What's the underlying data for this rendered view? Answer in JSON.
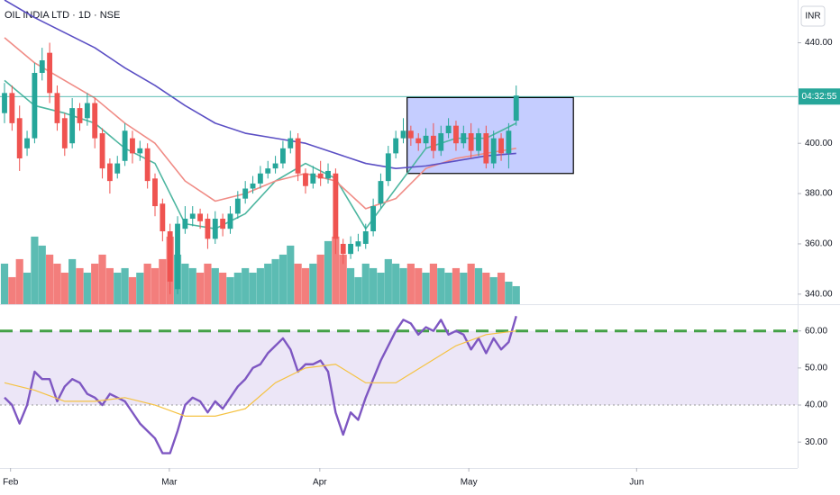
{
  "chart_data": [
    {
      "type": "candlestick",
      "title": "OIL INDIA LTD · 1D · NSE",
      "currency": "INR",
      "up_color": "#26a69a",
      "down_color": "#ef5350",
      "x": [
        0,
        1,
        2,
        3,
        4,
        5,
        6,
        7,
        8,
        9,
        10,
        11,
        12,
        13,
        14,
        15,
        16,
        17,
        18,
        19,
        20,
        21,
        22,
        23,
        24,
        25,
        26,
        27,
        28,
        29,
        30,
        31,
        32,
        33,
        34,
        35,
        36,
        37,
        38,
        39,
        40,
        41,
        42,
        43,
        44,
        45,
        46,
        47,
        48,
        49,
        50,
        51,
        52,
        53,
        54,
        55,
        56,
        57,
        58,
        59,
        60,
        61,
        62,
        63,
        64,
        65,
        66,
        67,
        68
      ],
      "open": [
        412,
        420,
        410,
        398,
        402,
        428,
        436,
        420,
        410,
        400,
        414,
        410,
        416,
        404,
        392,
        388,
        393,
        402,
        396,
        398,
        386,
        376,
        365,
        342,
        366,
        370,
        372,
        370,
        362,
        370,
        366,
        372,
        378,
        382,
        384,
        388,
        390,
        392,
        398,
        402,
        388,
        384,
        388,
        386,
        388,
        360,
        356,
        359,
        360,
        365,
        376,
        385,
        396,
        402,
        405,
        402,
        400,
        403,
        397,
        404,
        407,
        400,
        404,
        397,
        404,
        392,
        402,
        396,
        409
      ],
      "high": [
        424,
        423,
        415,
        405,
        432,
        438,
        440,
        423,
        412,
        418,
        416,
        420,
        418,
        406,
        394,
        395,
        408,
        405,
        401,
        400,
        388,
        378,
        368,
        371,
        375,
        375,
        374,
        372,
        373,
        372,
        375,
        381,
        385,
        387,
        391,
        393,
        395,
        401,
        405,
        404,
        390,
        391,
        393,
        392,
        390,
        362,
        363,
        364,
        368,
        378,
        388,
        399,
        405,
        410,
        407,
        404,
        406,
        408,
        407,
        410,
        409,
        407,
        408,
        406,
        407,
        405,
        404,
        408,
        423
      ],
      "low": [
        408,
        405,
        389,
        395,
        400,
        425,
        416,
        405,
        395,
        398,
        405,
        407,
        398,
        386,
        380,
        386,
        391,
        392,
        393,
        382,
        371,
        361,
        340,
        340,
        364,
        367,
        366,
        358,
        360,
        363,
        364,
        370,
        376,
        380,
        382,
        386,
        388,
        390,
        396,
        385,
        380,
        382,
        383,
        384,
        356,
        352,
        354,
        357,
        358,
        363,
        374,
        383,
        394,
        400,
        399,
        397,
        398,
        394,
        395,
        402,
        397,
        398,
        394,
        395,
        390,
        390,
        393,
        390,
        407
      ],
      "close": [
        420,
        408,
        394,
        402,
        428,
        433,
        420,
        408,
        398,
        414,
        408,
        416,
        402,
        390,
        385,
        392,
        405,
        396,
        398,
        385,
        375,
        365,
        345,
        368,
        370,
        372,
        369,
        362,
        370,
        366,
        372,
        378,
        382,
        384,
        388,
        390,
        392,
        398,
        402,
        388,
        383,
        388,
        386,
        389,
        362,
        356,
        360,
        361,
        365,
        375,
        385,
        396,
        402,
        405,
        402,
        400,
        403,
        397,
        404,
        407,
        400,
        404,
        397,
        404,
        392,
        402,
        396,
        405,
        419
      ],
      "volume": [
        18,
        12,
        20,
        14,
        30,
        26,
        22,
        18,
        14,
        20,
        16,
        14,
        18,
        22,
        16,
        14,
        16,
        12,
        14,
        18,
        16,
        20,
        30,
        22,
        18,
        16,
        14,
        18,
        16,
        14,
        12,
        14,
        16,
        14,
        16,
        18,
        20,
        22,
        26,
        18,
        16,
        18,
        22,
        28,
        30,
        22,
        16,
        12,
        18,
        16,
        14,
        20,
        18,
        16,
        18,
        16,
        14,
        18,
        16,
        14,
        16,
        14,
        18,
        16,
        14,
        12,
        14,
        10,
        8
      ],
      "volume_ylim": [
        0,
        135
      ],
      "lines": [
        {
          "color": "#4db6a0",
          "x": [
            0,
            4,
            8,
            12,
            16,
            20,
            24,
            28,
            32,
            36,
            40,
            44,
            48,
            52,
            56,
            60,
            64,
            68
          ],
          "values": [
            425,
            415,
            412,
            408,
            398,
            392,
            368,
            366,
            372,
            385,
            392,
            386,
            366,
            382,
            398,
            402,
            402,
            408
          ]
        },
        {
          "color": "#f08c86",
          "x": [
            0,
            4,
            8,
            12,
            16,
            20,
            24,
            28,
            32,
            36,
            40,
            44,
            48,
            52,
            56,
            60,
            64,
            68
          ],
          "values": [
            442,
            432,
            425,
            418,
            408,
            400,
            385,
            377,
            380,
            385,
            388,
            385,
            374,
            378,
            390,
            394,
            396,
            398
          ]
        },
        {
          "color": "#5b4fc4",
          "x": [
            0,
            4,
            8,
            12,
            16,
            20,
            24,
            28,
            32,
            36,
            40,
            44,
            48,
            52,
            56,
            60,
            64,
            68
          ],
          "values": [
            457,
            450,
            444,
            438,
            430,
            423,
            415,
            408,
            404,
            402,
            400,
            396,
            392,
            390,
            391,
            393,
            395,
            396
          ]
        }
      ],
      "range_box": {
        "x": [
          53.5,
          75.6
        ],
        "y": [
          388,
          418.2
        ],
        "color": "#3f5bff"
      },
      "price_line": {
        "value": 418.6,
        "label": "04:32:55",
        "color": "#26a69a"
      },
      "xlim": [
        -0.6,
        105.4
      ],
      "xticks": [
        {
          "value": 0.8,
          "label": "Feb"
        },
        {
          "value": 21.9,
          "label": "Mar"
        },
        {
          "value": 41.9,
          "label": "Apr"
        },
        {
          "value": 61.7,
          "label": "May"
        },
        {
          "value": 84,
          "label": "Jun"
        }
      ],
      "ylim": [
        336,
        457
      ],
      "yticks": [
        {
          "value": 440,
          "label": "440.00"
        },
        {
          "value": 400,
          "label": "400.00"
        },
        {
          "value": 380,
          "label": "380.00"
        },
        {
          "value": 360,
          "label": "360.00"
        },
        {
          "value": 340,
          "label": "340.00"
        }
      ]
    },
    {
      "type": "line",
      "series": [
        {
          "color": "#7e57c2",
          "x": [
            0,
            1,
            2,
            3,
            4,
            5,
            6,
            7,
            8,
            9,
            10,
            11,
            12,
            13,
            14,
            15,
            16,
            17,
            18,
            19,
            20,
            21,
            22,
            23,
            24,
            25,
            26,
            27,
            28,
            29,
            30,
            31,
            32,
            33,
            34,
            35,
            36,
            37,
            38,
            39,
            40,
            41,
            42,
            43,
            44,
            45,
            46,
            47,
            48,
            49,
            50,
            51,
            52,
            53,
            54,
            55,
            56,
            57,
            58,
            59,
            60,
            61,
            62,
            63,
            64,
            65,
            66,
            67,
            68
          ],
          "values": [
            42,
            40,
            35,
            40,
            49,
            47,
            47,
            41,
            45,
            47,
            46,
            43,
            42,
            40,
            43,
            42,
            41,
            38,
            35,
            33,
            31,
            27,
            27,
            33,
            40,
            42,
            41,
            38,
            41,
            39,
            42,
            45,
            47,
            50,
            51,
            54,
            56,
            58,
            55,
            49,
            51,
            51,
            52,
            49,
            38,
            32,
            38,
            36,
            42,
            47,
            52,
            56,
            60,
            63,
            62,
            59,
            61,
            60,
            63,
            59,
            60,
            59,
            55,
            58,
            54,
            58,
            55,
            57,
            64
          ]
        },
        {
          "color": "#f5c242",
          "x": [
            0,
            4,
            8,
            12,
            16,
            20,
            24,
            28,
            32,
            36,
            40,
            44,
            48,
            52,
            56,
            60,
            64,
            68
          ],
          "values": [
            46,
            44,
            41,
            41,
            42,
            40,
            37,
            37,
            39,
            46,
            50,
            51,
            46,
            46,
            51,
            56,
            59,
            60
          ]
        }
      ],
      "band": [
        40,
        60
      ],
      "band_color": "#ece6f7",
      "upper_line": {
        "value": 60,
        "color": "#43a047"
      },
      "lower_line": {
        "value": 40,
        "color": "#999999"
      },
      "ylim": [
        23,
        66
      ],
      "yticks": [
        {
          "value": 60,
          "label": "60.00"
        },
        {
          "value": 50,
          "label": "50.00"
        },
        {
          "value": 40,
          "label": "40.00"
        },
        {
          "value": 30,
          "label": "30.00"
        }
      ]
    }
  ]
}
